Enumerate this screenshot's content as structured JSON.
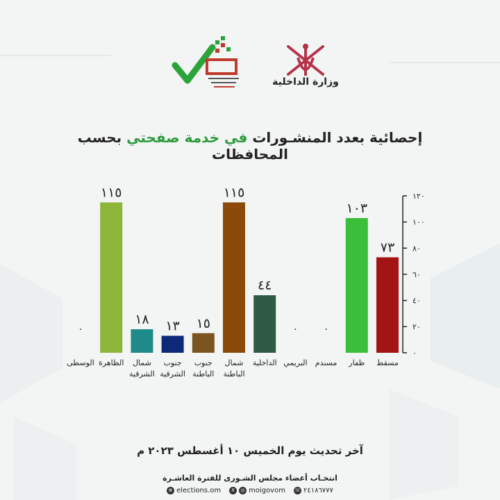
{
  "logos": {
    "ministry_text": "وزارة الداخلية"
  },
  "title": {
    "before": "إحصائية بعدد المنشـورات ",
    "highlight": "في خدمة صفحتي",
    "after": " بحسب المحافظات"
  },
  "chart_data": {
    "type": "bar",
    "title": "إحصائية بعدد المنشـورات في خدمة صفحتي بحسب المحافظات",
    "categories": [
      "مسقط",
      "ظفار",
      "مسندم",
      "البريمي",
      "الداخلية",
      "شمال الباطنة",
      "جنوب الباطنة",
      "جنوب الشرقية",
      "شمال الشرقية",
      "الظاهرة",
      "الوسطى"
    ],
    "category_lines": [
      [
        "مسقط"
      ],
      [
        "ظفار"
      ],
      [
        "مسندم"
      ],
      [
        "البريمي"
      ],
      [
        "الداخلية"
      ],
      [
        "شمال",
        "الباطنة"
      ],
      [
        "جنوب",
        "الباطنة"
      ],
      [
        "جنوب",
        "الشرقية"
      ],
      [
        "شمال",
        "الشرقية"
      ],
      [
        "الظاهرة"
      ],
      [
        "الوسطى"
      ]
    ],
    "values": [
      73,
      103,
      0,
      0,
      44,
      115,
      15,
      13,
      18,
      115,
      0
    ],
    "value_labels": [
      "٧٣",
      "١٠٣",
      "٠",
      "٠",
      "٤٤",
      "١١٥",
      "١٥",
      "١٣",
      "١٨",
      "١١٥",
      "٠"
    ],
    "colors": [
      "#a31414",
      "#3bbf3b",
      "#888888",
      "#888888",
      "#2f5a45",
      "#8c4a0a",
      "#7a5520",
      "#0d2a7a",
      "#1f8a8a",
      "#8db53a",
      "#888888"
    ],
    "ylim": [
      0,
      120
    ],
    "yticks": [
      0,
      20,
      40,
      60,
      80,
      100,
      120
    ],
    "ytick_labels": [
      "٠",
      "٢٠",
      "٤٠",
      "٦٠",
      "٨٠",
      "١٠٠",
      "١٢٠"
    ],
    "grid": false,
    "legend": "none"
  },
  "footer": {
    "date": "آخر تحديث يوم الخميس ١٠ أغسطس ٢٠٢٣ م",
    "sub": "انتخـاب أعضاء مجلس الشـورى للفترة العاشـرة",
    "phone": "٢٤١٨٦٧٧٧",
    "handle": "moigovom",
    "site": "elections.om"
  }
}
